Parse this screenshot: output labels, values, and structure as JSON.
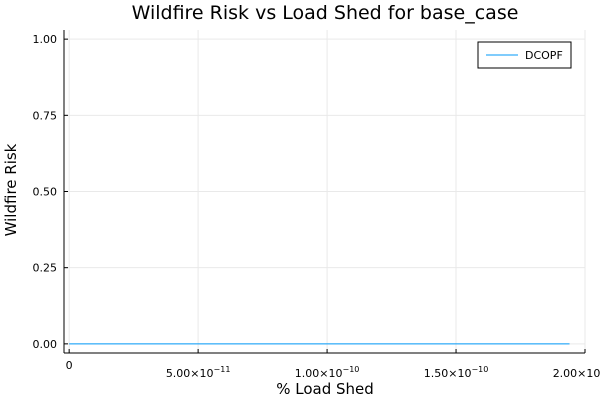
{
  "chart_data": {
    "type": "line",
    "title": "Wildfire Risk vs Load Shed for base_case",
    "xlabel": "% Load Shed",
    "ylabel": "Wildfire Risk",
    "xlim": [
      -2e-12,
      2e-10
    ],
    "ylim": [
      -0.03,
      1.03
    ],
    "xticks": [
      {
        "value": 0,
        "mantissa": "0",
        "exp": ""
      },
      {
        "value": 5e-11,
        "mantissa": "5.00×10",
        "exp": "−11"
      },
      {
        "value": 1e-10,
        "mantissa": "1.00×10",
        "exp": "−10"
      },
      {
        "value": 1.5e-10,
        "mantissa": "1.50×10",
        "exp": "−10"
      },
      {
        "value": 2e-10,
        "mantissa": "2.00×10",
        "exp": "−10"
      }
    ],
    "yticks": [
      {
        "value": 0.0,
        "label": "0.00"
      },
      {
        "value": 0.25,
        "label": "0.25"
      },
      {
        "value": 0.5,
        "label": "0.50"
      },
      {
        "value": 0.75,
        "label": "0.75"
      },
      {
        "value": 1.0,
        "label": "1.00"
      }
    ],
    "grid": true,
    "legend_position": "top-right",
    "series": [
      {
        "name": "DCOPF",
        "color": "#009AFA",
        "x": [
          0,
          1.94e-10
        ],
        "y": [
          0,
          0
        ]
      }
    ]
  }
}
